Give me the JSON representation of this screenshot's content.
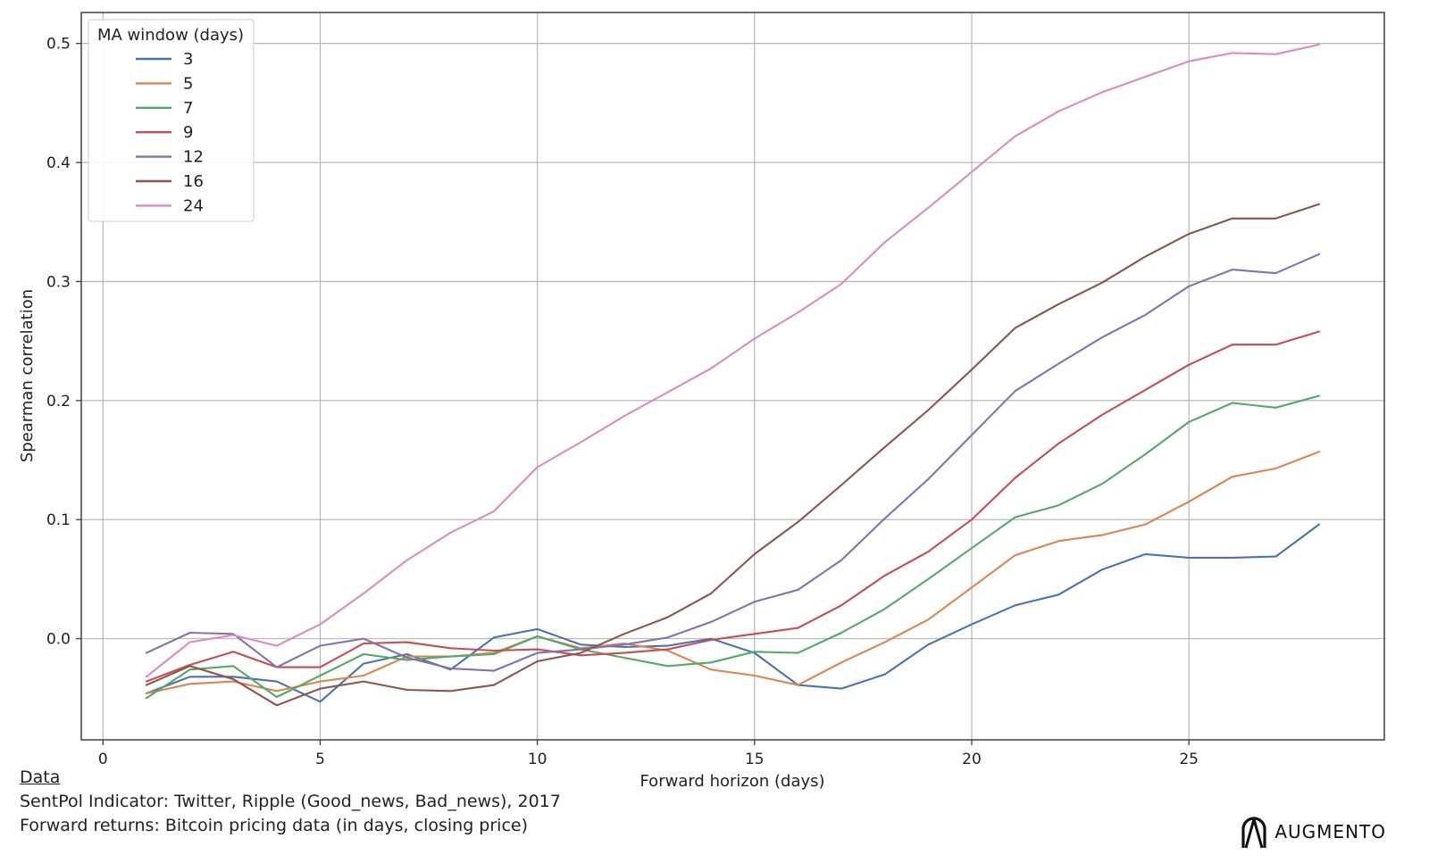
{
  "chart_data": {
    "type": "line",
    "xlabel": "Forward horizon (days)",
    "ylabel": "Spearman correlation",
    "xlim": [
      -0.5,
      29.5
    ],
    "ylim": [
      -0.085,
      0.526
    ],
    "xticks": [
      0,
      5,
      10,
      15,
      20,
      25
    ],
    "yticks": [
      0.0,
      0.1,
      0.2,
      0.3,
      0.4,
      0.5
    ],
    "ytick_labels": [
      "0.0",
      "0.1",
      "0.2",
      "0.3",
      "0.4",
      "0.5"
    ],
    "grid": true,
    "legend": {
      "title": "MA window (days)",
      "placement": "top-left"
    },
    "x": [
      1,
      2,
      3,
      4,
      5,
      6,
      7,
      8,
      9,
      10,
      11,
      12,
      13,
      14,
      15,
      16,
      17,
      18,
      19,
      20,
      21,
      22,
      23,
      24,
      25,
      26,
      27,
      28
    ],
    "series": [
      {
        "name": "3",
        "color": "#4c72b0",
        "values": [
          -0.046,
          -0.032,
          -0.032,
          -0.036,
          -0.053,
          -0.021,
          -0.013,
          -0.026,
          0.001,
          0.008,
          -0.005,
          -0.007,
          -0.006,
          0.0,
          -0.012,
          -0.039,
          -0.042,
          -0.03,
          -0.005,
          0.012,
          0.028,
          0.037,
          0.058,
          0.071,
          0.068,
          0.068,
          0.069,
          0.096
        ]
      },
      {
        "name": "5",
        "color": "#dd8452",
        "values": [
          -0.046,
          -0.038,
          -0.036,
          -0.044,
          -0.036,
          -0.031,
          -0.015,
          -0.015,
          -0.012,
          0.002,
          -0.008,
          -0.004,
          -0.01,
          -0.026,
          -0.031,
          -0.039,
          -0.02,
          -0.003,
          0.016,
          0.043,
          0.07,
          0.082,
          0.087,
          0.096,
          0.115,
          0.136,
          0.143,
          0.157
        ]
      },
      {
        "name": "7",
        "color": "#55a868",
        "values": [
          -0.05,
          -0.026,
          -0.023,
          -0.049,
          -0.031,
          -0.013,
          -0.018,
          -0.015,
          -0.013,
          0.002,
          -0.009,
          -0.016,
          -0.023,
          -0.02,
          -0.011,
          -0.012,
          0.005,
          0.025,
          0.05,
          0.076,
          0.102,
          0.112,
          0.13,
          0.155,
          0.182,
          0.198,
          0.194,
          0.204
        ]
      },
      {
        "name": "9",
        "color": "#c44e52",
        "values": [
          -0.036,
          -0.022,
          -0.011,
          -0.024,
          -0.024,
          -0.004,
          -0.003,
          -0.008,
          -0.01,
          -0.009,
          -0.014,
          -0.012,
          -0.009,
          -0.001,
          0.004,
          0.009,
          0.028,
          0.053,
          0.073,
          0.1,
          0.135,
          0.164,
          0.188,
          0.209,
          0.23,
          0.247,
          0.247,
          0.258
        ]
      },
      {
        "name": "12",
        "color": "#8172b2",
        "values": [
          -0.012,
          0.005,
          0.004,
          -0.024,
          -0.006,
          0.0,
          -0.016,
          -0.025,
          -0.027,
          -0.012,
          -0.009,
          -0.005,
          0.001,
          0.014,
          0.031,
          0.041,
          0.066,
          0.101,
          0.134,
          0.171,
          0.208,
          0.231,
          0.253,
          0.272,
          0.296,
          0.31,
          0.307,
          0.323
        ]
      },
      {
        "name": "16",
        "color": "#8c564b",
        "values": [
          -0.039,
          -0.023,
          -0.034,
          -0.056,
          -0.042,
          -0.036,
          -0.043,
          -0.044,
          -0.039,
          -0.019,
          -0.012,
          0.004,
          0.018,
          0.038,
          0.071,
          0.098,
          0.129,
          0.161,
          0.192,
          0.226,
          0.261,
          0.281,
          0.299,
          0.321,
          0.34,
          0.353,
          0.353,
          0.365
        ]
      },
      {
        "name": "24",
        "color": "#da8bc3",
        "values": [
          -0.032,
          -0.003,
          0.003,
          -0.006,
          0.012,
          0.038,
          0.066,
          0.089,
          0.107,
          0.144,
          0.165,
          0.187,
          0.207,
          0.227,
          0.252,
          0.274,
          0.298,
          0.333,
          0.362,
          0.392,
          0.422,
          0.443,
          0.459,
          0.472,
          0.485,
          0.492,
          0.491,
          0.499
        ]
      }
    ]
  },
  "footer": {
    "heading": "Data",
    "line1": "SentPol Indicator: Twitter, Ripple (Good_news, Bad_news), 2017",
    "line2": "Forward returns: Bitcoin pricing data (in days, closing price)"
  },
  "logo": {
    "brand": "AUGMENTO"
  }
}
